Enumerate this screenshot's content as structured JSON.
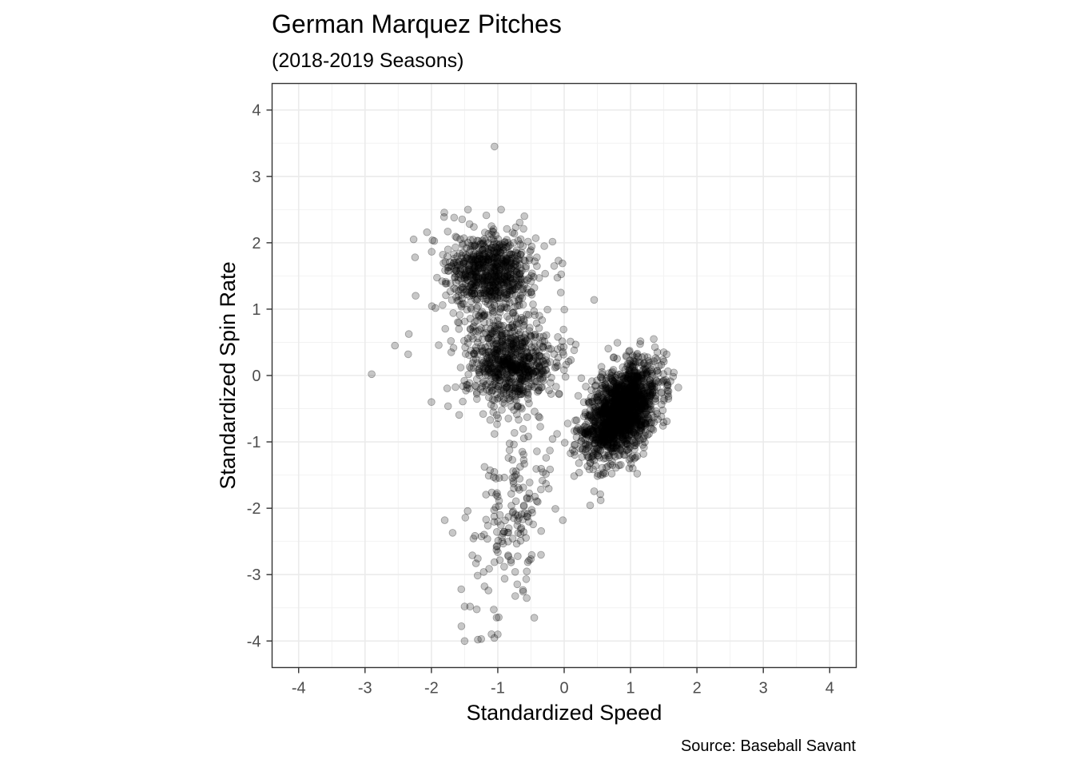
{
  "chart_data": {
    "type": "scatter",
    "title": "German Marquez Pitches",
    "subtitle": "(2018-2019 Seasons)",
    "xlabel": "Standardized Speed",
    "ylabel": "Standardized Spin Rate",
    "caption": "Source: Baseball Savant",
    "xlim": [
      -4.4,
      4.4
    ],
    "ylim": [
      -4.4,
      4.4
    ],
    "xticks": [
      -4,
      -3,
      -2,
      -1,
      0,
      1,
      2,
      3,
      4
    ],
    "yticks": [
      -4,
      -3,
      -2,
      -1,
      0,
      1,
      2,
      3,
      4
    ],
    "xtick_labels": [
      "-4",
      "-3",
      "-2",
      "-1",
      "0",
      "1",
      "2",
      "3",
      "4"
    ],
    "ytick_labels": [
      "-4",
      "-3",
      "-2",
      "-1",
      "0",
      "1",
      "2",
      "3",
      "4"
    ],
    "grid": true,
    "point_color": "#000000",
    "point_opacity": 0.22,
    "clusters": [
      {
        "center": [
          0.85,
          -0.55
        ],
        "sd": [
          0.27,
          0.36
        ],
        "corr": 0.45,
        "n": 1700
      },
      {
        "center": [
          -1.12,
          1.55
        ],
        "sd": [
          0.36,
          0.32
        ],
        "corr": -0.05,
        "n": 750
      },
      {
        "center": [
          -0.95,
          0.45
        ],
        "sd": [
          0.4,
          0.35
        ],
        "corr": 0.0,
        "n": 240
      },
      {
        "center": [
          -0.78,
          0.12
        ],
        "sd": [
          0.3,
          0.26
        ],
        "corr": 0.0,
        "n": 520
      },
      {
        "center": [
          -0.78,
          -2.05
        ],
        "sd": [
          0.32,
          0.75
        ],
        "corr": 0.35,
        "n": 175
      }
    ],
    "points": [
      {
        "x": -1.05,
        "y": 3.45
      },
      {
        "x": -2.9,
        "y": 0.02
      },
      {
        "x": -1.5,
        "y": -4.0
      },
      {
        "x": -1.3,
        "y": -3.98
      },
      {
        "x": -1.25,
        "y": -3.97
      },
      {
        "x": -1.0,
        "y": -3.9
      },
      {
        "x": -0.45,
        "y": -3.65
      },
      {
        "x": -1.8,
        "y": -2.18
      },
      {
        "x": -1.68,
        "y": -2.37
      },
      {
        "x": 1.72,
        "y": -0.18
      },
      {
        "x": -0.05,
        "y": 1.25
      },
      {
        "x": -0.02,
        "y": -2.18
      },
      {
        "x": -1.5,
        "y": -3.48
      },
      {
        "x": -1.55,
        "y": -3.22
      },
      {
        "x": -0.2,
        "y": 0.4
      },
      {
        "x": 0.15,
        "y": 0.38
      },
      {
        "x": 1.35,
        "y": 0.55
      },
      {
        "x": 1.5,
        "y": 0.35
      },
      {
        "x": -2.55,
        "y": 0.45
      },
      {
        "x": -2.35,
        "y": 0.32
      },
      {
        "x": -1.45,
        "y": 2.5
      },
      {
        "x": -0.95,
        "y": 2.5
      },
      {
        "x": -0.6,
        "y": 2.4
      },
      {
        "x": -2.0,
        "y": -0.4
      },
      {
        "x": -1.05,
        "y": -0.88
      },
      {
        "x": 0.55,
        "y": -1.88
      },
      {
        "x": 1.1,
        "y": -1.48
      },
      {
        "x": -0.15,
        "y": 1.65
      },
      {
        "x": -0.3,
        "y": 1.95
      }
    ]
  }
}
